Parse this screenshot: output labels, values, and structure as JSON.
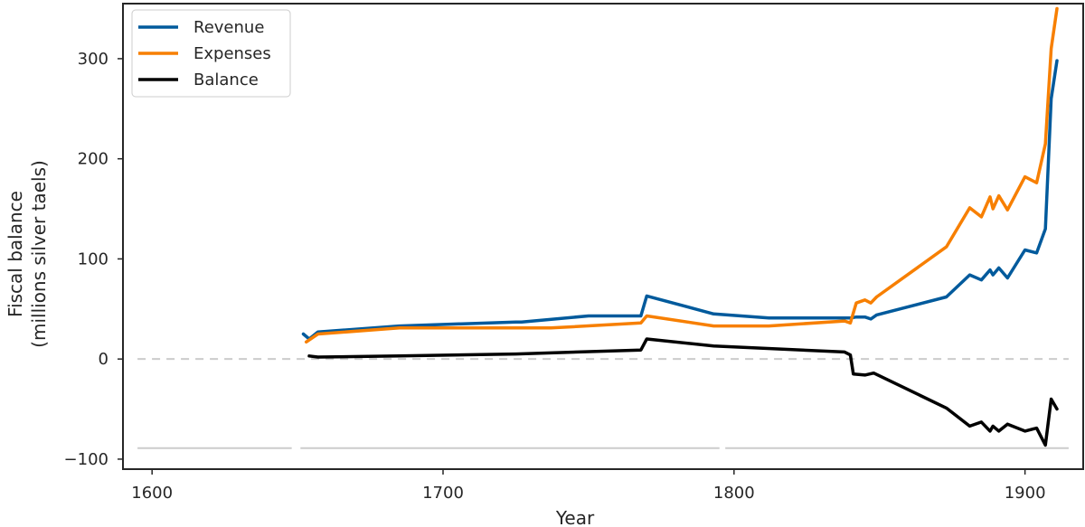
{
  "chart_data": {
    "type": "line",
    "xlabel": "Year",
    "ylabel_lines": [
      "Fiscal balance",
      "(millions silver taels)"
    ],
    "xlim": [
      1590,
      1920
    ],
    "ylim": [
      -110,
      355
    ],
    "x_ticks": [
      1600,
      1700,
      1800,
      1900
    ],
    "y_ticks": [
      -100,
      0,
      100,
      200,
      300
    ],
    "grid": false,
    "legend_position": "top-left",
    "reference_line": {
      "y": 0,
      "style": "dashed",
      "color": "#cccccc"
    },
    "baseline_segments": {
      "y": -89,
      "color": "#cccccc",
      "segments": [
        [
          1595,
          1648
        ],
        [
          1651,
          1795
        ],
        [
          1797,
          1915
        ]
      ]
    },
    "series": [
      {
        "name": "Revenue",
        "color": "#005a9c",
        "points": [
          [
            1652,
            25
          ],
          [
            1654,
            20
          ],
          [
            1657,
            27
          ],
          [
            1685,
            33
          ],
          [
            1725,
            37
          ],
          [
            1727,
            37
          ],
          [
            1750,
            43
          ],
          [
            1768,
            43
          ],
          [
            1770,
            63
          ],
          [
            1793,
            45
          ],
          [
            1812,
            41
          ],
          [
            1840,
            41
          ],
          [
            1842,
            42
          ],
          [
            1845,
            42
          ],
          [
            1847,
            40
          ],
          [
            1849,
            44
          ],
          [
            1873,
            62
          ],
          [
            1881,
            84
          ],
          [
            1885,
            79
          ],
          [
            1888,
            89
          ],
          [
            1889,
            84
          ],
          [
            1891,
            91
          ],
          [
            1894,
            81
          ],
          [
            1900,
            109
          ],
          [
            1904,
            106
          ],
          [
            1907,
            130
          ],
          [
            1909,
            260
          ],
          [
            1911,
            298
          ]
        ]
      },
      {
        "name": "Expenses",
        "color": "#f77f00",
        "points": [
          [
            1653,
            17
          ],
          [
            1657,
            25
          ],
          [
            1685,
            31
          ],
          [
            1725,
            31
          ],
          [
            1737,
            31
          ],
          [
            1768,
            36
          ],
          [
            1770,
            43
          ],
          [
            1793,
            33
          ],
          [
            1812,
            33
          ],
          [
            1838,
            38
          ],
          [
            1840,
            36
          ],
          [
            1842,
            56
          ],
          [
            1845,
            59
          ],
          [
            1847,
            56
          ],
          [
            1849,
            62
          ],
          [
            1873,
            112
          ],
          [
            1881,
            151
          ],
          [
            1885,
            142
          ],
          [
            1888,
            162
          ],
          [
            1889,
            150
          ],
          [
            1891,
            163
          ],
          [
            1894,
            149
          ],
          [
            1900,
            182
          ],
          [
            1904,
            176
          ],
          [
            1907,
            215
          ],
          [
            1909,
            310
          ],
          [
            1911,
            350
          ]
        ]
      },
      {
        "name": "Balance",
        "color": "#000000",
        "points": [
          [
            1654,
            3
          ],
          [
            1657,
            2
          ],
          [
            1685,
            3
          ],
          [
            1725,
            5
          ],
          [
            1768,
            9
          ],
          [
            1770,
            20
          ],
          [
            1793,
            13
          ],
          [
            1838,
            7
          ],
          [
            1840,
            4
          ],
          [
            1841,
            -15
          ],
          [
            1845,
            -16
          ],
          [
            1848,
            -14
          ],
          [
            1873,
            -49
          ],
          [
            1881,
            -67
          ],
          [
            1885,
            -63
          ],
          [
            1888,
            -72
          ],
          [
            1889,
            -67
          ],
          [
            1891,
            -72
          ],
          [
            1894,
            -65
          ],
          [
            1900,
            -72
          ],
          [
            1904,
            -69
          ],
          [
            1907,
            -86
          ],
          [
            1909,
            -40
          ],
          [
            1911,
            -50
          ]
        ]
      }
    ]
  }
}
